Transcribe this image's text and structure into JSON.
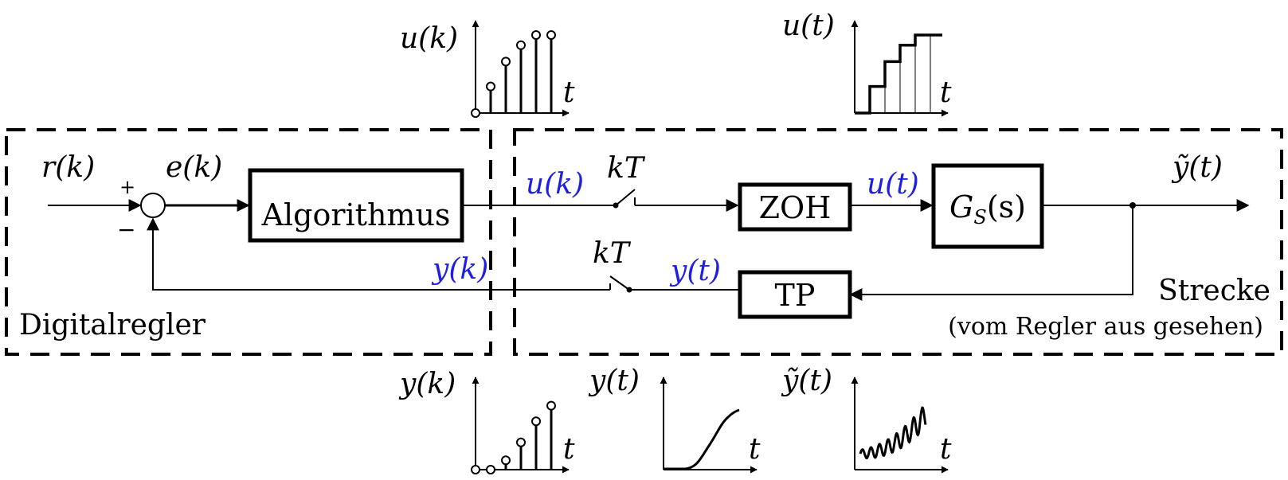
{
  "regions": {
    "controller_label": "Digitalregler",
    "plant_label": "Strecke",
    "plant_sublabel": "(vom Regler aus gesehen)"
  },
  "blocks": {
    "algorithm": "Algorithmus",
    "zoh": "ZOH",
    "plant_fn": "G",
    "plant_fn_sub": "S",
    "plant_fn_arg": "(s)",
    "filter": "TP"
  },
  "signals": {
    "reference": "r(k)",
    "error": "e(k)",
    "plus": "+",
    "minus": "−",
    "u_k_wire": "u(k)",
    "u_t_wire": "u(t)",
    "y_k_wire": "y(k)",
    "y_t_wire": "y(t)",
    "sample_top": "kT",
    "sample_bottom": "kT",
    "output": "ỹ(t)"
  },
  "sketches": {
    "u_k": {
      "label": "u(k)",
      "axis": "t",
      "samples": [
        0,
        0.34,
        0.66,
        0.87,
        1.0,
        1.0
      ]
    },
    "u_t": {
      "label": "u(t)",
      "axis": "t",
      "steps": [
        0,
        0.34,
        0.66,
        0.87,
        1.0,
        1.0
      ]
    },
    "y_k": {
      "label": "y(k)",
      "axis": "t",
      "samples": [
        0,
        0,
        0.12,
        0.35,
        0.62,
        0.82
      ]
    },
    "y_t": {
      "label": "y(t)",
      "axis": "t"
    },
    "y_tilde": {
      "label": "ỹ(t)",
      "axis": "t"
    }
  },
  "colors": {
    "signal_label": "#1f1fe0",
    "line": "#000000"
  }
}
